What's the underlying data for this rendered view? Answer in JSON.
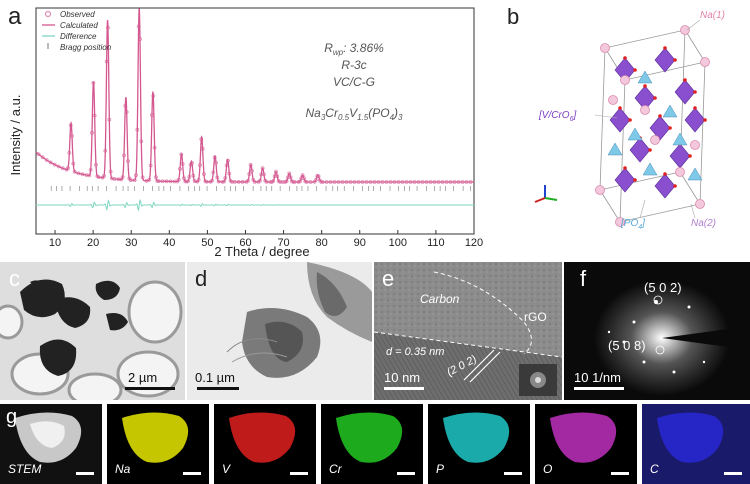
{
  "panels": {
    "a": {
      "letter": "a",
      "ylabel": "Intensity / a.u.",
      "xlabel": "2 Theta / degree",
      "legend": [
        "Observed",
        "Calculated",
        "Difference",
        "Bragg position"
      ],
      "annotations": {
        "rwp": "R",
        "rwp_sub": "wp",
        "rwp_value": ": 3.86%",
        "space_group": "R-3c",
        "sample": "VC/C-G",
        "formula": "Na3Cr0.5V1.5(PO4)3"
      }
    },
    "b": {
      "letter": "b",
      "labels": {
        "na1": "Na(1)",
        "vcro6": "[V/CrO",
        "vcro6_sub": "6",
        "vcro6_end": "]",
        "po4": "[PO",
        "po4_sub": "4",
        "po4_end": "]",
        "na2": "Na(2)"
      }
    },
    "c": {
      "letter": "c",
      "scale": "2 µm"
    },
    "d": {
      "letter": "d",
      "scale": "0.1 µm"
    },
    "e": {
      "letter": "e",
      "scale": "10 nm",
      "carbon": "Carbon",
      "rgo": "rGO",
      "d_spacing": "d = 0.35 nm",
      "plane": "(2 0 2)"
    },
    "f": {
      "letter": "f",
      "scale": "10 1/nm",
      "spot1": "(5 0 2)",
      "spot2": "(5 0 8)"
    },
    "g": {
      "letter": "g",
      "maps": [
        "STEM",
        "Na",
        "V",
        "Cr",
        "P",
        "O",
        "C"
      ]
    }
  },
  "colors": {
    "observed": "#e08cb4",
    "calculated": "#d4578f",
    "difference": "#7fd6c2",
    "bragg": "#777777",
    "na": "#e8e800",
    "v": "#e02020",
    "cr": "#22c822",
    "p": "#20c8c8",
    "o": "#c030c0",
    "c": "#2828d0"
  },
  "chart_data": {
    "type": "line",
    "title": "",
    "xlabel": "2 Theta / degree",
    "ylabel": "Intensity / a.u.",
    "xlim": [
      5,
      120
    ],
    "xticks": [
      10,
      20,
      30,
      40,
      50,
      60,
      70,
      80,
      90,
      100,
      110,
      120
    ],
    "legend_placement": "top-left",
    "grid": false,
    "peaks": [
      {
        "x": 14.2,
        "height": 0.28
      },
      {
        "x": 20.1,
        "height": 0.55
      },
      {
        "x": 23.8,
        "height": 0.92
      },
      {
        "x": 28.6,
        "height": 0.48
      },
      {
        "x": 32.1,
        "height": 1.0
      },
      {
        "x": 35.7,
        "height": 0.52
      },
      {
        "x": 43.2,
        "height": 0.16
      },
      {
        "x": 45.8,
        "height": 0.12
      },
      {
        "x": 48.5,
        "height": 0.26
      },
      {
        "x": 52.0,
        "height": 0.15
      },
      {
        "x": 55.3,
        "height": 0.13
      },
      {
        "x": 61.4,
        "height": 0.1
      },
      {
        "x": 64.5,
        "height": 0.08
      },
      {
        "x": 68.0,
        "height": 0.06
      },
      {
        "x": 71.5,
        "height": 0.05
      },
      {
        "x": 75.0,
        "height": 0.04
      },
      {
        "x": 79.0,
        "height": 0.04
      }
    ]
  }
}
